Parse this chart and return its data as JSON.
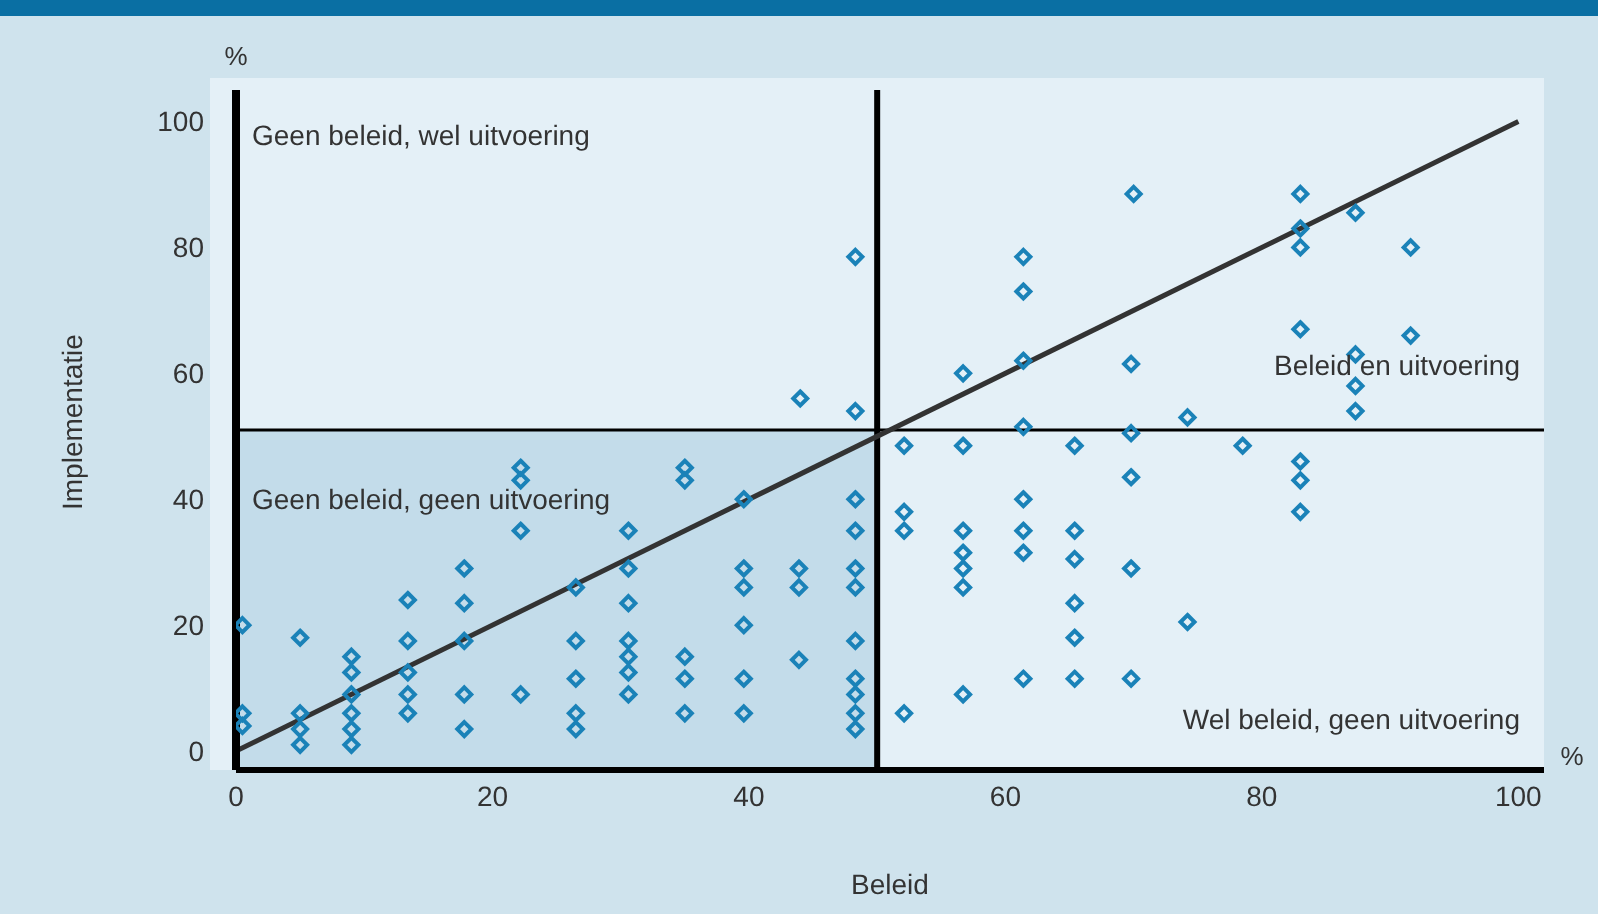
{
  "chart_data": {
    "type": "scatter",
    "xlabel": "Beleid",
    "ylabel": "Implementatie",
    "annotations": [
      "Geen beleid, wel uitvoering",
      "Beleid en uitvoering",
      "Geen beleid, geen uitvoering",
      "Wel beleid, geen uitvoering",
      "%",
      "%"
    ],
    "xlim": [
      0,
      102
    ],
    "ylim": [
      -3,
      105
    ],
    "xticks": [
      0,
      20,
      40,
      60,
      80,
      100
    ],
    "yticks": [
      0,
      20,
      40,
      60,
      80,
      100
    ],
    "grid": false,
    "legend": false,
    "marker": "diamond",
    "ref_lines": [
      {
        "axis": "x",
        "value": 50,
        "color": "#000000"
      },
      {
        "axis": "y",
        "value": 51,
        "color": "#000000"
      }
    ],
    "bands": [
      {
        "axis": "x",
        "from": 0,
        "to": 50,
        "color": "#c3dcea"
      }
    ],
    "series": [
      {
        "color": "#1a82b8",
        "x": [
          0.5,
          0.5,
          0.5,
          5,
          5,
          5,
          5,
          9,
          9,
          9,
          9,
          9,
          9,
          13.4,
          13.4,
          13.4,
          13.4,
          13.4,
          17.8,
          17.8,
          17.8,
          17.8,
          17.8,
          22.2,
          22.2,
          22.2,
          22.2,
          26.5,
          26.5,
          26.5,
          26.5,
          26.5,
          30.6,
          30.6,
          30.6,
          30.6,
          30.6,
          30.6,
          30.6,
          35,
          35,
          35,
          35,
          35,
          39.6,
          39.6,
          39.6,
          39.6,
          39.6,
          39.6,
          43.9,
          43.9,
          43.9,
          44,
          48.3,
          48.3,
          48.3,
          48.3,
          48.3,
          48.3,
          48.3,
          48.3,
          48.3,
          48.3,
          48.3,
          70,
          83,
          83,
          83,
          87.3,
          91.6,
          61.4,
          61.4,
          83,
          91.6,
          87.3,
          87.3,
          87.3,
          56.7,
          61.4,
          69.8,
          74.2,
          61.4,
          69.8,
          52.1,
          56.7,
          65.4,
          78.5,
          83,
          83,
          83,
          69.8,
          61.4,
          52.1,
          52.1,
          56.7,
          56.7,
          56.7,
          56.7,
          61.4,
          61.4,
          65.4,
          65.4,
          69.8,
          65.4,
          65.4,
          74.2,
          61.4,
          65.4,
          69.8,
          56.7,
          52.1
        ],
        "values": [
          20,
          6,
          4,
          18,
          6,
          3.5,
          1,
          15,
          12.5,
          9,
          6,
          3.5,
          1,
          24,
          17.5,
          12.5,
          9,
          6,
          29,
          23.5,
          17.5,
          9,
          3.5,
          45,
          43,
          35,
          9,
          26,
          17.5,
          11.5,
          6,
          3.5,
          35,
          29,
          23.5,
          17.5,
          15,
          12.5,
          9,
          45,
          43,
          15,
          11.5,
          6,
          40,
          29,
          26,
          20,
          11.5,
          6,
          29,
          26,
          14.5,
          56,
          54,
          78.5,
          40,
          35,
          29,
          26,
          17.5,
          11.5,
          9,
          6,
          3.5,
          88.5,
          88.5,
          83,
          80,
          85.5,
          80,
          78.5,
          73,
          67,
          66,
          63,
          58,
          54,
          60,
          62,
          61.5,
          53,
          51.5,
          50.5,
          48.5,
          48.5,
          48.5,
          48.5,
          46,
          43,
          38,
          43.5,
          40,
          38,
          35,
          35,
          31.5,
          29,
          26,
          35,
          31.5,
          35,
          30.5,
          29,
          23.5,
          18,
          20.5,
          11.5,
          11.5,
          11.5,
          9,
          6
        ]
      },
      {
        "type": "line",
        "marker": "none",
        "color": "#333333",
        "x": [
          0,
          100
        ],
        "values": [
          0,
          100
        ]
      }
    ]
  }
}
